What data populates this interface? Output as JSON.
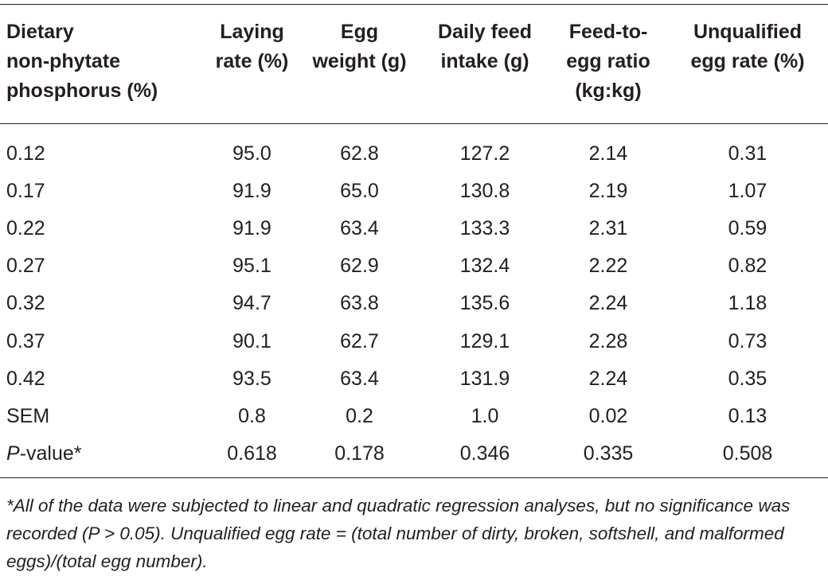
{
  "table": {
    "headers": [
      "Dietary non-phytate phosphorus (%)",
      "Laying rate (%)",
      "Egg weight (g)",
      "Daily feed intake (g)",
      "Feed-to-egg ratio (kg:kg)",
      "Unqualified egg rate (%)"
    ],
    "header_lines": [
      [
        "Dietary",
        "non-phytate",
        "phosphorus (%)"
      ],
      [
        "Laying",
        "rate (%)"
      ],
      [
        "Egg",
        "weight (g)"
      ],
      [
        "Daily feed",
        "intake (g)"
      ],
      [
        "Feed-to-",
        "egg ratio",
        "(kg:kg)"
      ],
      [
        "Unqualified",
        "egg rate (%)"
      ]
    ],
    "rows": [
      [
        "0.12",
        "95.0",
        "62.8",
        "127.2",
        "2.14",
        "0.31"
      ],
      [
        "0.17",
        "91.9",
        "65.0",
        "130.8",
        "2.19",
        "1.07"
      ],
      [
        "0.22",
        "91.9",
        "63.4",
        "133.3",
        "2.31",
        "0.59"
      ],
      [
        "0.27",
        "95.1",
        "62.9",
        "132.4",
        "2.22",
        "0.82"
      ],
      [
        "0.32",
        "94.7",
        "63.8",
        "135.6",
        "2.24",
        "1.18"
      ],
      [
        "0.37",
        "90.1",
        "62.7",
        "129.1",
        "2.28",
        "0.73"
      ],
      [
        "0.42",
        "93.5",
        "63.4",
        "131.9",
        "2.24",
        "0.35"
      ],
      [
        "SEM",
        "0.8",
        "0.2",
        "1.0",
        "0.02",
        "0.13"
      ]
    ],
    "pvalue_row": {
      "label_italic": "P",
      "label_rest": "-value*",
      "values": [
        "0.618",
        "0.178",
        "0.346",
        "0.335",
        "0.508"
      ]
    }
  },
  "footnote": "*All of the data were subjected to linear and quadratic regression analyses, but no significance was recorded (P > 0.05). Unqualified egg rate = (total number of dirty, broken, softshell, and malformed eggs)/(total egg number).",
  "colors": {
    "text": "#231f20",
    "rule": "#231f20",
    "background": "#ffffff"
  }
}
